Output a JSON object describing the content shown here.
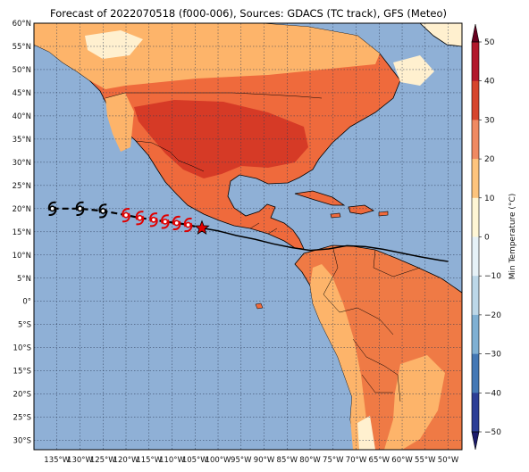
{
  "title": "Forecast of 2022070518 (f000-006), Sources: GDACS (TC track), GFS (Meteo)",
  "colors": {
    "ocean": "#8fb0d6",
    "gridline": "#2b3a55",
    "coast": "#000000",
    "track": "#000000",
    "storm_forecast": "#000000",
    "storm_past": "#e00000"
  },
  "map": {
    "lon_range": [
      -140,
      -47
    ],
    "lat_range": [
      -32,
      60
    ],
    "lat_ticks": [
      {
        "value": 60,
        "label": "60°N"
      },
      {
        "value": 55,
        "label": "55°N"
      },
      {
        "value": 50,
        "label": "50°N"
      },
      {
        "value": 45,
        "label": "45°N"
      },
      {
        "value": 40,
        "label": "40°N"
      },
      {
        "value": 35,
        "label": "35°N"
      },
      {
        "value": 30,
        "label": "30°N"
      },
      {
        "value": 25,
        "label": "25°N"
      },
      {
        "value": 20,
        "label": "20°N"
      },
      {
        "value": 15,
        "label": "15°N"
      },
      {
        "value": 10,
        "label": "10°N"
      },
      {
        "value": 5,
        "label": "5°N"
      },
      {
        "value": 0,
        "label": "0°"
      },
      {
        "value": -5,
        "label": "5°S"
      },
      {
        "value": -10,
        "label": "10°S"
      },
      {
        "value": -15,
        "label": "15°S"
      },
      {
        "value": -20,
        "label": "20°S"
      },
      {
        "value": -25,
        "label": "25°S"
      },
      {
        "value": -30,
        "label": "30°S"
      }
    ],
    "lon_ticks": [
      {
        "value": -135,
        "label": "135°W"
      },
      {
        "value": -130,
        "label": "130°W"
      },
      {
        "value": -125,
        "label": "125°W"
      },
      {
        "value": -120,
        "label": "120°W"
      },
      {
        "value": -115,
        "label": "115°W"
      },
      {
        "value": -110,
        "label": "110°W"
      },
      {
        "value": -105,
        "label": "105°W"
      },
      {
        "value": -100,
        "label": "100°W"
      },
      {
        "value": -95,
        "label": "95°W"
      },
      {
        "value": -90,
        "label": "90°W"
      },
      {
        "value": -85,
        "label": "85°W"
      },
      {
        "value": -80,
        "label": "80°W"
      },
      {
        "value": -75,
        "label": "75°W"
      },
      {
        "value": -70,
        "label": "70°W"
      },
      {
        "value": -65,
        "label": "65°W"
      },
      {
        "value": -60,
        "label": "60°W"
      },
      {
        "value": -55,
        "label": "55°W"
      },
      {
        "value": -50,
        "label": "50°W"
      }
    ]
  },
  "colorbar": {
    "label": "Min Temperature (°C)",
    "ticks": [
      50,
      40,
      30,
      20,
      10,
      0,
      -10,
      -20,
      -30,
      -40,
      -50
    ],
    "colors": [
      "#67001f",
      "#b2182b",
      "#d6452d",
      "#ef8a62",
      "#fdc47d",
      "#fff6d5",
      "#e6f1f7",
      "#bcd7e8",
      "#7fb0d3",
      "#4478b5",
      "#2c3e96",
      "#1b1b6b"
    ]
  },
  "track": {
    "forecast_points": [
      [
        -136,
        20.0
      ],
      [
        -130,
        20.0
      ],
      [
        -125,
        19.5
      ]
    ],
    "past_points": [
      [
        -120,
        18.6
      ],
      [
        -117,
        18.0
      ],
      [
        -114,
        17.6
      ],
      [
        -111.5,
        17.2
      ],
      [
        -109,
        16.9
      ],
      [
        -106.5,
        16.5
      ]
    ],
    "current_position": [
      -103.5,
      15.8
    ],
    "gfs_path": [
      [
        -104,
        15.9
      ],
      [
        -100,
        15.2
      ],
      [
        -96,
        14.2
      ],
      [
        -92,
        13.4
      ],
      [
        -88,
        12.4
      ],
      [
        -84,
        11.6
      ],
      [
        -80,
        11.0
      ],
      [
        -76,
        11.3
      ],
      [
        -72,
        12.0
      ],
      [
        -68,
        11.8
      ],
      [
        -64,
        11.2
      ],
      [
        -60,
        10.4
      ],
      [
        -56,
        9.6
      ],
      [
        -52,
        8.9
      ],
      [
        -50,
        8.6
      ]
    ]
  }
}
